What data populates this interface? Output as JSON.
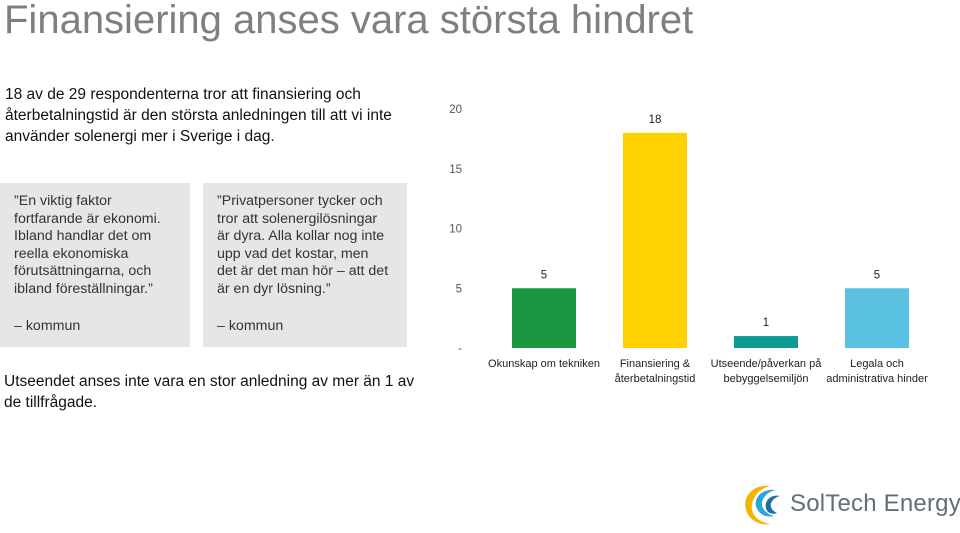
{
  "title": "Finansiering anses vara största hindret",
  "intro": "18 av de 29 respondenterna tror att finansiering och återbetalningstid är den största anledningen till att vi inte använder solenergi mer i Sverige i dag.",
  "quotes": [
    {
      "text": "”En viktig faktor\nfortfarande är ekonomi.\nIbland handlar det om\nreella ekonomiska\nförutsättningarna, och\nibland föreställningar.”",
      "source": "– kommun"
    },
    {
      "text": "”Privatpersoner tycker och\ntror att solenergilösningar\när dyra. Alla kollar nog inte\nupp vad det kostar, men\ndet är det man hör – att det\när en dyr lösning.”",
      "source": "– kommun"
    }
  ],
  "outro": "Utseendet anses inte vara en stor anledning av mer än 1 av de tillfrågade.",
  "logo": {
    "text": "SolTech Energy"
  },
  "chart_data": {
    "type": "bar",
    "categories": [
      [
        "Okunskap om tekniken"
      ],
      [
        "Finansiering &",
        "återbetalningstid"
      ],
      [
        "Utseende/påverkan på",
        "bebyggelsemiljön"
      ],
      [
        "Legala och",
        "administrativa hinder"
      ]
    ],
    "values": [
      5,
      18,
      1,
      5
    ],
    "value_labels": [
      "5",
      "18",
      "1",
      "5"
    ],
    "colors": [
      "#1a9641",
      "#ffd100",
      "#0e9a93",
      "#5bc1e3"
    ],
    "ylim": [
      0,
      20
    ],
    "yticks": [
      0,
      5,
      10,
      15,
      20
    ],
    "ytick_labels": [
      "-",
      "5",
      "10",
      "15",
      "20"
    ],
    "grid": false,
    "legend": "none"
  }
}
